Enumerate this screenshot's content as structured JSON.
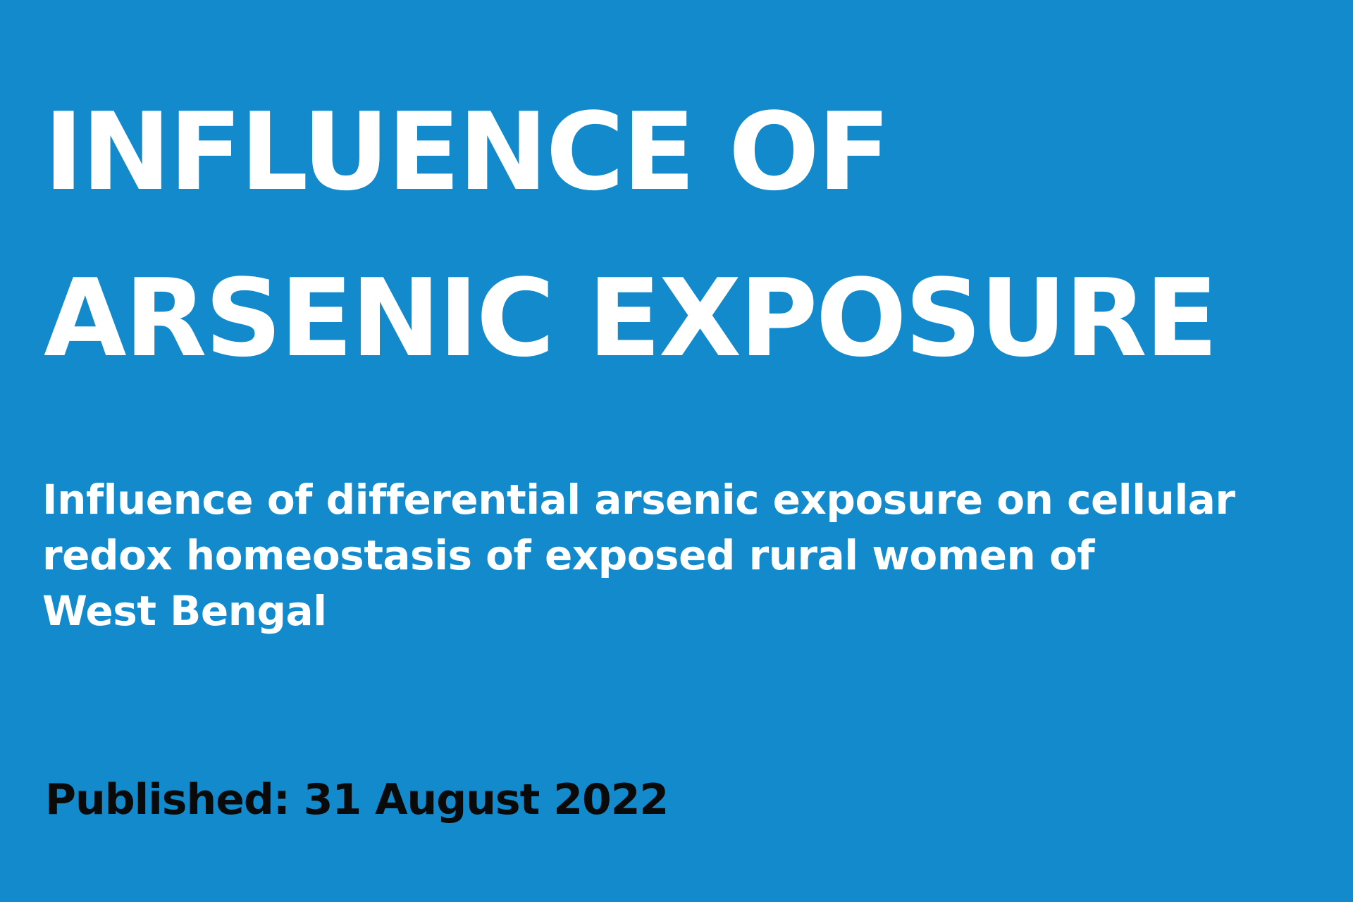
{
  "colors": {
    "background": "#128ACB",
    "title_text": "#FFFFFF",
    "subtitle_text": "#FFFFFF",
    "published_text": "#0A0A0A"
  },
  "headline": {
    "lines": [
      "INFLUENCE OF",
      "ARSENIC EXPOSURE"
    ]
  },
  "subtitle": {
    "lines": [
      "Influence of differential arsenic exposure on cellular",
      "redox homeostasis of exposed rural women of",
      "West Bengal"
    ]
  },
  "published": {
    "text": "Published: 31 August 2022"
  }
}
